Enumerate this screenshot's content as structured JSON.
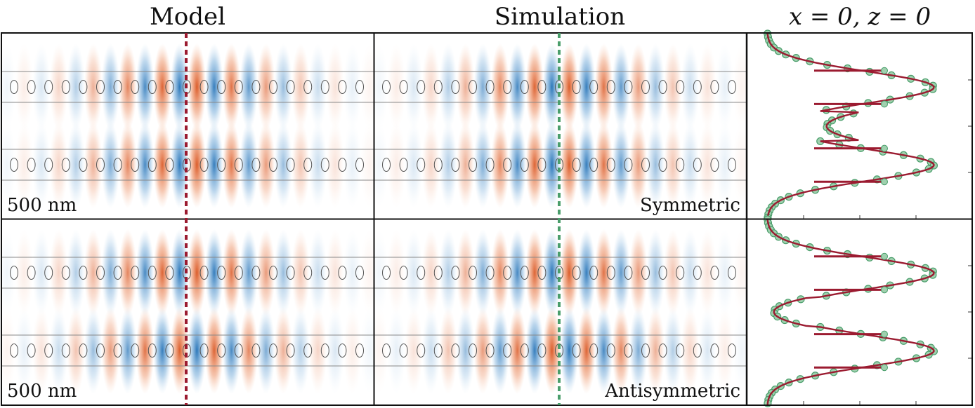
{
  "titles": {
    "model": "Model",
    "simulation": "Simulation",
    "profile": "x = 0, z = 0"
  },
  "rows": [
    {
      "id": "symmetric",
      "scale_label": "500 nm",
      "mode_label": "Symmetric",
      "parity": 1
    },
    {
      "id": "antisymmetric",
      "scale_label": "500 nm",
      "mode_label": "Antisymmetric",
      "parity": -1
    }
  ],
  "holes_per_row": 21,
  "waveguides_per_panel": 2,
  "colors": {
    "positive_field": "#e0602a",
    "negative_field": "#2b7bc0",
    "model_line": "#9b1b30",
    "simulation_line": "#4a9e6b",
    "simulation_marker_fill": "#9fd0ae",
    "frame": "#111111",
    "hole_outline": "#555555",
    "waveguide_edge": "#888888"
  },
  "legend": {
    "model_cut": "dashed dark red line",
    "simulation_cut": "dashed green line"
  }
}
